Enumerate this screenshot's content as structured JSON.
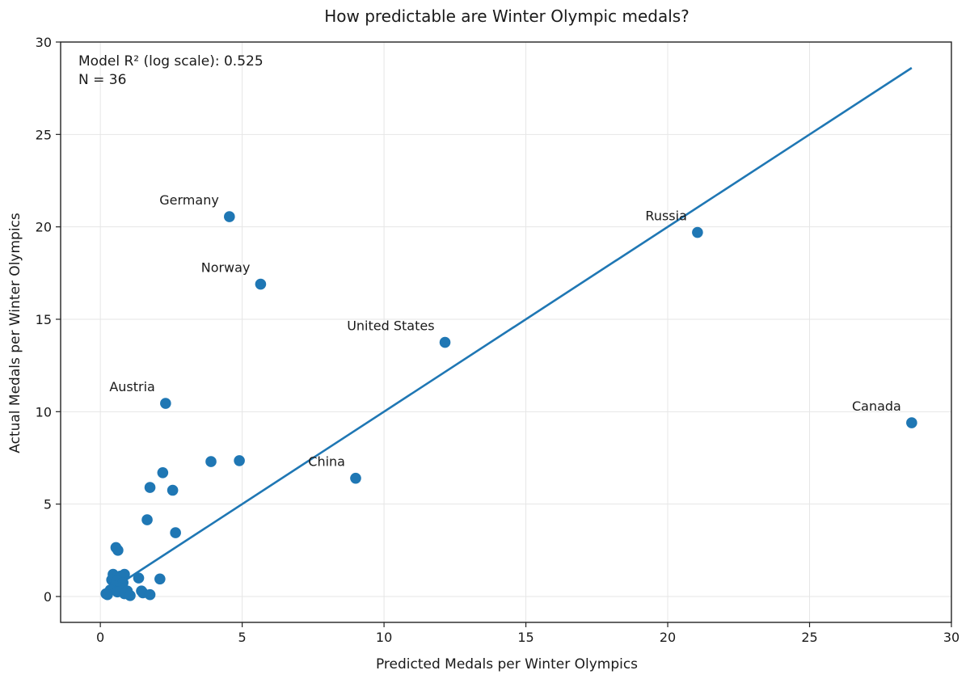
{
  "chart_data": {
    "type": "scatter",
    "title": "How predictable are Winter Olympic medals?",
    "xlabel": "Predicted Medals per Winter Olympics",
    "ylabel": "Actual Medals per Winter Olympics",
    "xlim": [
      -1.4,
      30
    ],
    "ylim": [
      -1.4,
      30
    ],
    "xticks": [
      0,
      5,
      10,
      15,
      20,
      25,
      30
    ],
    "yticks": [
      0,
      5,
      10,
      15,
      20,
      25,
      30
    ],
    "grid": true,
    "annotation_lines": [
      "Model R² (log scale): 0.525",
      "N = 36"
    ],
    "fit_line": {
      "x": [
        0.6,
        28.6
      ],
      "y": [
        0.6,
        28.6
      ]
    },
    "point_color": "#1f77b4",
    "line_color": "#1f77b4",
    "points": [
      {
        "x": 4.55,
        "y": 20.55,
        "label": "Germany"
      },
      {
        "x": 21.05,
        "y": 19.7,
        "label": "Russia"
      },
      {
        "x": 5.65,
        "y": 16.9,
        "label": "Norway"
      },
      {
        "x": 12.15,
        "y": 13.75,
        "label": "United States"
      },
      {
        "x": 2.3,
        "y": 10.45,
        "label": "Austria"
      },
      {
        "x": 28.6,
        "y": 9.4,
        "label": "Canada"
      },
      {
        "x": 9.0,
        "y": 6.4,
        "label": "China"
      },
      {
        "x": 3.9,
        "y": 7.3
      },
      {
        "x": 4.9,
        "y": 7.35
      },
      {
        "x": 2.2,
        "y": 6.7
      },
      {
        "x": 1.75,
        "y": 5.9
      },
      {
        "x": 2.55,
        "y": 5.75
      },
      {
        "x": 1.65,
        "y": 4.15
      },
      {
        "x": 2.65,
        "y": 3.45
      },
      {
        "x": 0.55,
        "y": 2.65
      },
      {
        "x": 0.62,
        "y": 2.5
      },
      {
        "x": 0.45,
        "y": 1.2
      },
      {
        "x": 0.85,
        "y": 1.2
      },
      {
        "x": 0.7,
        "y": 1.1
      },
      {
        "x": 0.4,
        "y": 0.9
      },
      {
        "x": 0.6,
        "y": 0.85
      },
      {
        "x": 0.8,
        "y": 0.75
      },
      {
        "x": 1.35,
        "y": 1.0
      },
      {
        "x": 2.1,
        "y": 0.95
      },
      {
        "x": 0.5,
        "y": 0.55
      },
      {
        "x": 0.7,
        "y": 0.45
      },
      {
        "x": 0.35,
        "y": 0.35
      },
      {
        "x": 0.95,
        "y": 0.3
      },
      {
        "x": 1.45,
        "y": 0.3
      },
      {
        "x": 0.6,
        "y": 0.25
      },
      {
        "x": 1.5,
        "y": 0.2
      },
      {
        "x": 0.85,
        "y": 0.15
      },
      {
        "x": 0.2,
        "y": 0.15
      },
      {
        "x": 0.25,
        "y": 0.1
      },
      {
        "x": 1.75,
        "y": 0.1
      },
      {
        "x": 1.05,
        "y": 0.05
      }
    ]
  }
}
